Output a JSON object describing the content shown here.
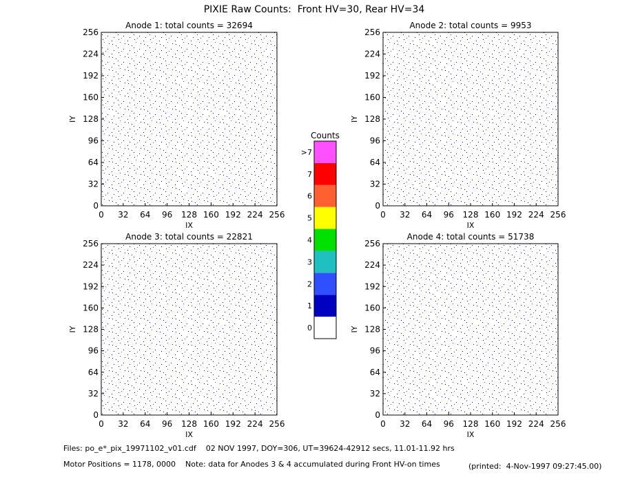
{
  "title": "PIXIE Raw Counts:  Front HV=30, Rear HV=34",
  "chart_data": [
    {
      "type": "heatmap",
      "title": "Anode 1: total counts = 32694",
      "xlabel": "IX",
      "ylabel": "IY",
      "xlim": [
        0,
        256
      ],
      "ylim": [
        0,
        256
      ],
      "xticks": [
        0,
        32,
        64,
        96,
        128,
        160,
        192,
        224,
        256
      ],
      "yticks": [
        0,
        32,
        64,
        96,
        128,
        160,
        192,
        224,
        256
      ]
    },
    {
      "type": "heatmap",
      "title": "Anode 2: total counts = 9953",
      "xlabel": "IX",
      "ylabel": "IY",
      "xlim": [
        0,
        256
      ],
      "ylim": [
        0,
        256
      ],
      "xticks": [
        0,
        32,
        64,
        96,
        128,
        160,
        192,
        224,
        256
      ],
      "yticks": [
        0,
        32,
        64,
        96,
        128,
        160,
        192,
        224,
        256
      ]
    },
    {
      "type": "heatmap",
      "title": "Anode 3: total counts = 22821",
      "xlabel": "IX",
      "ylabel": "IY",
      "xlim": [
        0,
        256
      ],
      "ylim": [
        0,
        256
      ],
      "xticks": [
        0,
        32,
        64,
        96,
        128,
        160,
        192,
        224,
        256
      ],
      "yticks": [
        0,
        32,
        64,
        96,
        128,
        160,
        192,
        224,
        256
      ]
    },
    {
      "type": "heatmap",
      "title": "Anode 4: total counts = 51738",
      "xlabel": "IX",
      "ylabel": "IY",
      "xlim": [
        0,
        256
      ],
      "ylim": [
        0,
        256
      ],
      "xticks": [
        0,
        32,
        64,
        96,
        128,
        160,
        192,
        224,
        256
      ],
      "yticks": [
        0,
        32,
        64,
        96,
        128,
        160,
        192,
        224,
        256
      ]
    }
  ],
  "colorbar": {
    "title": "Counts",
    "labels": [
      "0",
      "1",
      "2",
      "3",
      "4",
      "5",
      "6",
      "7",
      ">7"
    ],
    "colors": [
      "#ffffff",
      "#0000c0",
      "#3050ff",
      "#20c0c0",
      "#00e000",
      "#ffff00",
      "#ff6030",
      "#ff0000",
      "#ff50ff"
    ]
  },
  "footer": {
    "files": "Files: po_e*_pix_19971102_v01.cdf    02 NOV 1997, DOY=306, UT=39624-42912 secs, 11.01-11.92 hrs",
    "motor": "Motor Positions = 1178, 0000    Note: data for Anodes 3 & 4 accumulated during Front HV-on times",
    "printed": "(printed:  4-Nov-1997 09:27:45.00)"
  }
}
